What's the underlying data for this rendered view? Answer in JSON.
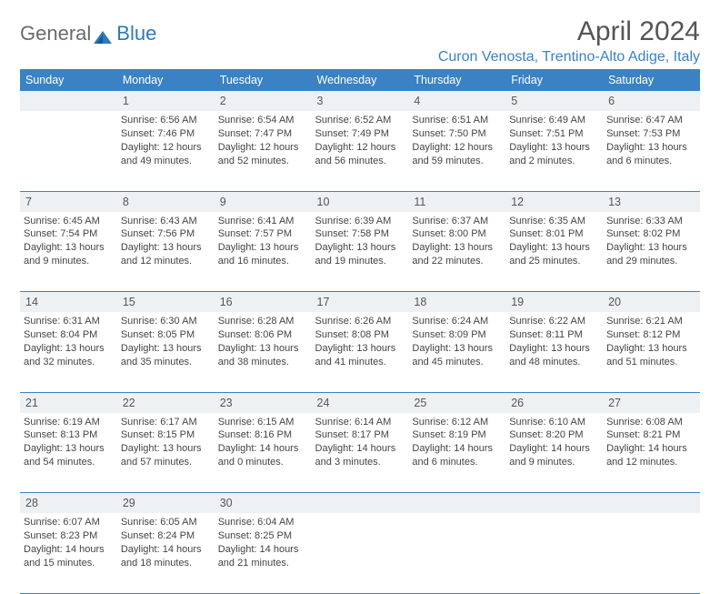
{
  "logo": {
    "word1": "General",
    "word2": "Blue"
  },
  "title": "April 2024",
  "location": "Curon Venosta, Trentino-Alto Adige, Italy",
  "colors": {
    "header_bg": "#3a82c4",
    "header_text": "#ffffff",
    "daynum_bg": "#eef1f3",
    "border": "#3a82c4",
    "text": "#444444",
    "title_text": "#555555",
    "location_text": "#3a82c4"
  },
  "day_headers": [
    "Sunday",
    "Monday",
    "Tuesday",
    "Wednesday",
    "Thursday",
    "Friday",
    "Saturday"
  ],
  "weeks": [
    {
      "nums": [
        "",
        "1",
        "2",
        "3",
        "4",
        "5",
        "6"
      ],
      "cells": [
        null,
        {
          "sunrise": "6:56 AM",
          "sunset": "7:46 PM",
          "dl_h": 12,
          "dl_m": 49
        },
        {
          "sunrise": "6:54 AM",
          "sunset": "7:47 PM",
          "dl_h": 12,
          "dl_m": 52
        },
        {
          "sunrise": "6:52 AM",
          "sunset": "7:49 PM",
          "dl_h": 12,
          "dl_m": 56
        },
        {
          "sunrise": "6:51 AM",
          "sunset": "7:50 PM",
          "dl_h": 12,
          "dl_m": 59
        },
        {
          "sunrise": "6:49 AM",
          "sunset": "7:51 PM",
          "dl_h": 13,
          "dl_m": 2
        },
        {
          "sunrise": "6:47 AM",
          "sunset": "7:53 PM",
          "dl_h": 13,
          "dl_m": 6
        }
      ]
    },
    {
      "nums": [
        "7",
        "8",
        "9",
        "10",
        "11",
        "12",
        "13"
      ],
      "cells": [
        {
          "sunrise": "6:45 AM",
          "sunset": "7:54 PM",
          "dl_h": 13,
          "dl_m": 9
        },
        {
          "sunrise": "6:43 AM",
          "sunset": "7:56 PM",
          "dl_h": 13,
          "dl_m": 12
        },
        {
          "sunrise": "6:41 AM",
          "sunset": "7:57 PM",
          "dl_h": 13,
          "dl_m": 16
        },
        {
          "sunrise": "6:39 AM",
          "sunset": "7:58 PM",
          "dl_h": 13,
          "dl_m": 19
        },
        {
          "sunrise": "6:37 AM",
          "sunset": "8:00 PM",
          "dl_h": 13,
          "dl_m": 22
        },
        {
          "sunrise": "6:35 AM",
          "sunset": "8:01 PM",
          "dl_h": 13,
          "dl_m": 25
        },
        {
          "sunrise": "6:33 AM",
          "sunset": "8:02 PM",
          "dl_h": 13,
          "dl_m": 29
        }
      ]
    },
    {
      "nums": [
        "14",
        "15",
        "16",
        "17",
        "18",
        "19",
        "20"
      ],
      "cells": [
        {
          "sunrise": "6:31 AM",
          "sunset": "8:04 PM",
          "dl_h": 13,
          "dl_m": 32
        },
        {
          "sunrise": "6:30 AM",
          "sunset": "8:05 PM",
          "dl_h": 13,
          "dl_m": 35
        },
        {
          "sunrise": "6:28 AM",
          "sunset": "8:06 PM",
          "dl_h": 13,
          "dl_m": 38
        },
        {
          "sunrise": "6:26 AM",
          "sunset": "8:08 PM",
          "dl_h": 13,
          "dl_m": 41
        },
        {
          "sunrise": "6:24 AM",
          "sunset": "8:09 PM",
          "dl_h": 13,
          "dl_m": 45
        },
        {
          "sunrise": "6:22 AM",
          "sunset": "8:11 PM",
          "dl_h": 13,
          "dl_m": 48
        },
        {
          "sunrise": "6:21 AM",
          "sunset": "8:12 PM",
          "dl_h": 13,
          "dl_m": 51
        }
      ]
    },
    {
      "nums": [
        "21",
        "22",
        "23",
        "24",
        "25",
        "26",
        "27"
      ],
      "cells": [
        {
          "sunrise": "6:19 AM",
          "sunset": "8:13 PM",
          "dl_h": 13,
          "dl_m": 54
        },
        {
          "sunrise": "6:17 AM",
          "sunset": "8:15 PM",
          "dl_h": 13,
          "dl_m": 57
        },
        {
          "sunrise": "6:15 AM",
          "sunset": "8:16 PM",
          "dl_h": 14,
          "dl_m": 0
        },
        {
          "sunrise": "6:14 AM",
          "sunset": "8:17 PM",
          "dl_h": 14,
          "dl_m": 3
        },
        {
          "sunrise": "6:12 AM",
          "sunset": "8:19 PM",
          "dl_h": 14,
          "dl_m": 6
        },
        {
          "sunrise": "6:10 AM",
          "sunset": "8:20 PM",
          "dl_h": 14,
          "dl_m": 9
        },
        {
          "sunrise": "6:08 AM",
          "sunset": "8:21 PM",
          "dl_h": 14,
          "dl_m": 12
        }
      ]
    },
    {
      "nums": [
        "28",
        "29",
        "30",
        "",
        "",
        "",
        ""
      ],
      "cells": [
        {
          "sunrise": "6:07 AM",
          "sunset": "8:23 PM",
          "dl_h": 14,
          "dl_m": 15
        },
        {
          "sunrise": "6:05 AM",
          "sunset": "8:24 PM",
          "dl_h": 14,
          "dl_m": 18
        },
        {
          "sunrise": "6:04 AM",
          "sunset": "8:25 PM",
          "dl_h": 14,
          "dl_m": 21
        },
        null,
        null,
        null,
        null
      ]
    }
  ],
  "labels": {
    "sunrise": "Sunrise:",
    "sunset": "Sunset:",
    "daylight_prefix": "Daylight:",
    "hours_word": "hours",
    "and_word": "and",
    "minutes_word": "minutes."
  }
}
